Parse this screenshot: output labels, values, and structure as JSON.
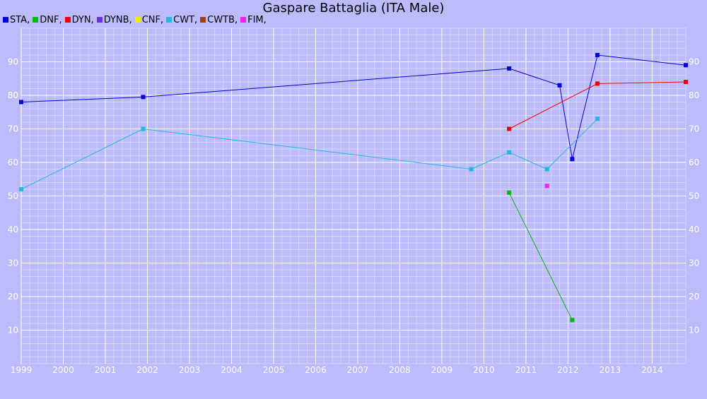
{
  "chart_data": {
    "type": "line",
    "title": "Gaspare Battaglia (ITA Male)",
    "xlim": [
      1999,
      2014.8
    ],
    "ylim": [
      0,
      100
    ],
    "x_ticks": [
      "1999",
      "2000",
      "2001",
      "2002",
      "2003",
      "2004",
      "2005",
      "2006",
      "2007",
      "2008",
      "2009",
      "2010",
      "2011",
      "2012",
      "2013",
      "2014"
    ],
    "y_ticks": [
      "10",
      "20",
      "30",
      "40",
      "50",
      "60",
      "70",
      "80",
      "90"
    ],
    "grid": true,
    "legend_position": "top-left",
    "series": [
      {
        "name": "STA",
        "color": "#0000dd",
        "points": [
          [
            1999.0,
            78
          ],
          [
            2001.9,
            79.5
          ],
          [
            2010.6,
            88
          ],
          [
            2011.8,
            83
          ],
          [
            2012.1,
            61
          ],
          [
            2012.7,
            92
          ],
          [
            2014.8,
            89
          ]
        ]
      },
      {
        "name": "DNF",
        "color": "#00bb00",
        "points": [
          [
            2010.6,
            51
          ],
          [
            2012.1,
            13
          ]
        ]
      },
      {
        "name": "DYN",
        "color": "#ee0000",
        "points": [
          [
            2010.6,
            70
          ],
          [
            2012.7,
            83.5
          ],
          [
            2014.8,
            84
          ]
        ]
      },
      {
        "name": "DYNB",
        "color": "#6633dd",
        "points": []
      },
      {
        "name": "CNF",
        "color": "#eeee00",
        "points": []
      },
      {
        "name": "CWT",
        "color": "#22bbdd",
        "points": [
          [
            1999.0,
            52
          ],
          [
            2001.9,
            70
          ],
          [
            2009.7,
            58
          ],
          [
            2010.6,
            63
          ],
          [
            2011.5,
            58
          ],
          [
            2012.7,
            73
          ]
        ]
      },
      {
        "name": "CWTB",
        "color": "#994411",
        "points": []
      },
      {
        "name": "FIM",
        "color": "#ee22ee",
        "points": [
          [
            2011.5,
            53
          ]
        ]
      }
    ]
  }
}
